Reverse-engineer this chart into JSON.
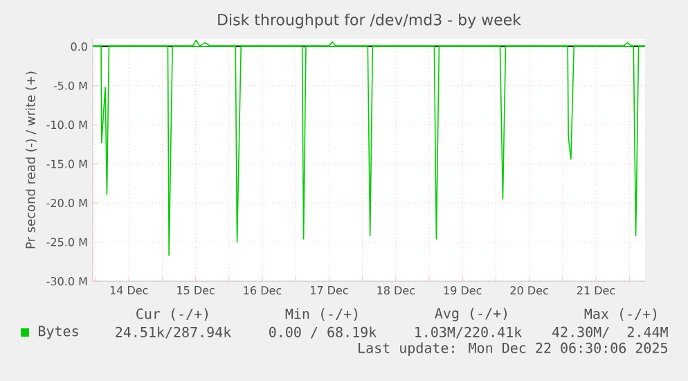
{
  "chart_data": {
    "type": "line",
    "title": "Disk throughput for /dev/md3 - by week",
    "ylabel": "Pr second read (-) / write (+)",
    "xlim": [
      "2025-12-13T23:00",
      "2025-12-22T05:40"
    ],
    "ylim": [
      -30,
      1
    ],
    "xticks": [
      {
        "value": "2025-12-14T00:00",
        "label": null
      },
      {
        "value": "2025-12-14T12:00",
        "label": "14 Dec"
      },
      {
        "value": "2025-12-15T00:00",
        "label": null
      },
      {
        "value": "2025-12-15T12:00",
        "label": "15 Dec"
      },
      {
        "value": "2025-12-16T00:00",
        "label": null
      },
      {
        "value": "2025-12-16T12:00",
        "label": "16 Dec"
      },
      {
        "value": "2025-12-17T00:00",
        "label": null
      },
      {
        "value": "2025-12-17T12:00",
        "label": "17 Dec"
      },
      {
        "value": "2025-12-18T00:00",
        "label": null
      },
      {
        "value": "2025-12-18T12:00",
        "label": "18 Dec"
      },
      {
        "value": "2025-12-19T00:00",
        "label": null
      },
      {
        "value": "2025-12-19T12:00",
        "label": "19 Dec"
      },
      {
        "value": "2025-12-20T00:00",
        "label": null
      },
      {
        "value": "2025-12-20T12:00",
        "label": "20 Dec"
      },
      {
        "value": "2025-12-21T00:00",
        "label": null
      },
      {
        "value": "2025-12-21T12:00",
        "label": "21 Dec"
      },
      {
        "value": "2025-12-22T00:00",
        "label": null
      }
    ],
    "yticks": [
      {
        "value": -30,
        "label": "-30.0 M"
      },
      {
        "value": -25,
        "label": "-25.0 M"
      },
      {
        "value": -20,
        "label": "-20.0 M"
      },
      {
        "value": -15,
        "label": "-15.0 M"
      },
      {
        "value": -10,
        "label": "-10.0 M"
      },
      {
        "value": -5,
        "label": "-5.0 M"
      },
      {
        "value": 0,
        "label": "0.0"
      }
    ],
    "grid": true,
    "legend": "bottom left",
    "ref_lines": [
      {
        "axis": "y",
        "value": 0,
        "color": "#000000"
      }
    ],
    "series": [
      {
        "name": "Bytes",
        "color": "#00cc00",
        "x": [
          "2025-12-13T23:00",
          "2025-12-14T02:00",
          "2025-12-14T02:10",
          "2025-12-14T03:30",
          "2025-12-14T04:05",
          "2025-12-14T04:50",
          "2025-12-15T02:00",
          "2025-12-15T02:25",
          "2025-12-15T03:40",
          "2025-12-16T02:20",
          "2025-12-16T02:55",
          "2025-12-16T04:20",
          "2025-12-17T02:20",
          "2025-12-17T02:50",
          "2025-12-17T03:40",
          "2025-12-18T01:55",
          "2025-12-18T02:45",
          "2025-12-18T03:40",
          "2025-12-19T01:50",
          "2025-12-19T02:35",
          "2025-12-19T03:35",
          "2025-12-20T01:30",
          "2025-12-20T02:30",
          "2025-12-20T03:30",
          "2025-12-21T01:50",
          "2025-12-21T02:05",
          "2025-12-21T03:00",
          "2025-12-21T04:05",
          "2025-12-22T01:30",
          "2025-12-22T02:20",
          "2025-12-22T03:20",
          "2025-12-22T05:40"
        ],
        "values": [
          0,
          0,
          -12.3,
          -5.2,
          -18.9,
          0,
          0,
          -26.7,
          0,
          0,
          -25.0,
          0,
          0,
          -24.6,
          0,
          0,
          -24.2,
          0,
          0,
          -24.6,
          0,
          0,
          -19.5,
          0,
          0,
          -11.6,
          -14.4,
          0,
          0,
          -24.2,
          0,
          0
        ]
      },
      {
        "color": "#00cc00",
        "x": [
          "2025-12-13T23:00",
          "2025-12-15T11:00",
          "2025-12-15T12:10",
          "2025-12-15T13:30",
          "2025-12-15T15:30",
          "2025-12-15T17:00",
          "2025-12-17T12:00",
          "2025-12-17T13:10",
          "2025-12-17T14:20",
          "2025-12-21T22:00",
          "2025-12-21T23:20",
          "2025-12-22T00:40",
          "2025-12-22T05:40"
        ],
        "values": [
          0.1,
          0.1,
          0.8,
          0.1,
          0.5,
          0.1,
          0.1,
          0.6,
          0.1,
          0.1,
          0.5,
          0.1,
          0.1
        ]
      }
    ],
    "annotations": [
      "Cur (-/+)",
      "Min (-/+)",
      "Avg (-/+)",
      "Max (-/+)",
      "24.51k/287.94k",
      "0.00 / 68.19k",
      "1.03M/220.41k",
      "42.30M/  2.44M",
      "Last update: Mon Dec 22 06:30:06 2025"
    ]
  }
}
